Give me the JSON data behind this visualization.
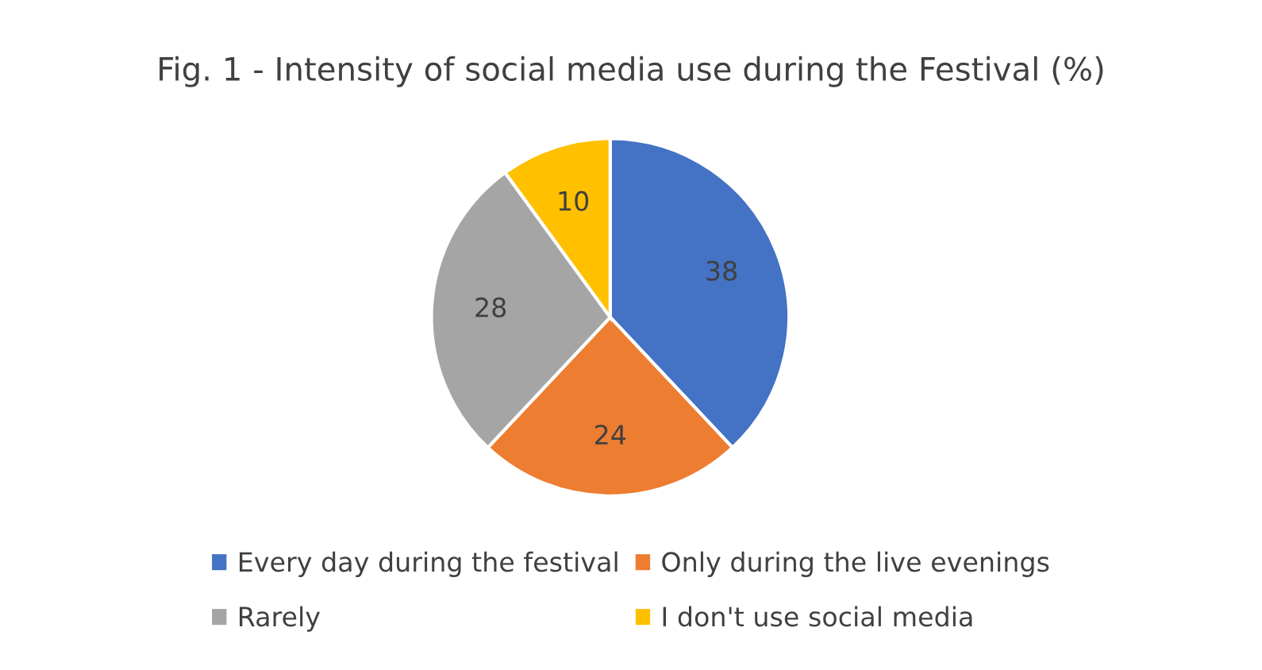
{
  "chart_data": {
    "type": "pie",
    "title": "Fig. 1 - Intensity of social media use during the Festival (%)",
    "categories": [
      "Every day during the festival",
      "Only during the live evenings",
      "Rarely",
      "I don't use social media"
    ],
    "values": [
      38,
      24,
      28,
      10
    ],
    "colors": [
      "#4472c4",
      "#ed7d31",
      "#a5a5a5",
      "#ffc000"
    ],
    "data_labels": true,
    "legend": "bottom"
  }
}
